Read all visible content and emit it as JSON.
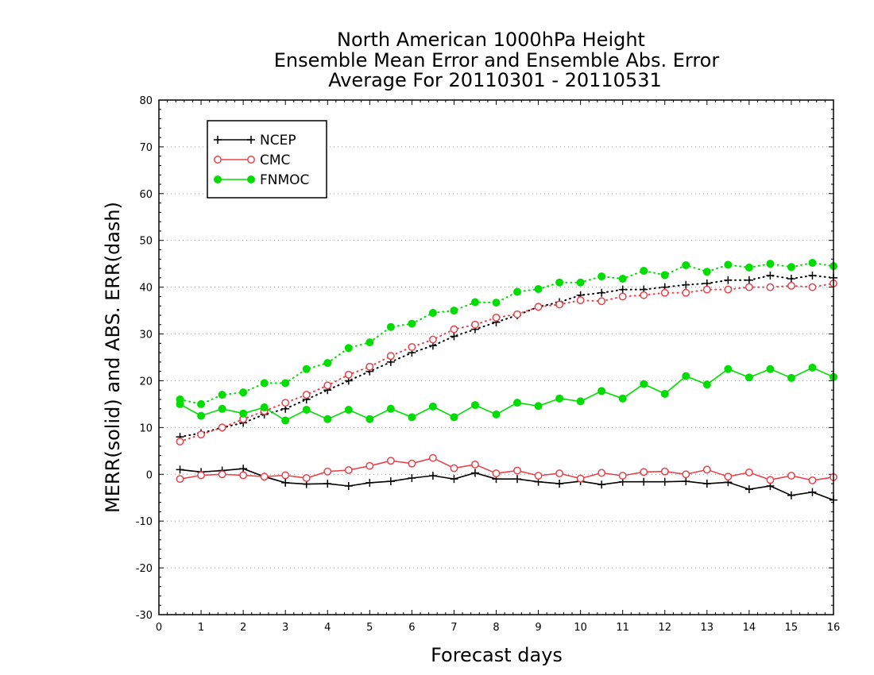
{
  "chart_data": {
    "type": "line",
    "title": [
      "North American 1000hPa Height",
      "Ensemble Mean Error and Ensemble Abs. Error",
      "Average For 20110301 - 20110531"
    ],
    "xlabel": "Forecast days",
    "ylabel": "MERR(solid) and ABS. ERR(dash)",
    "xlim": [
      0,
      16
    ],
    "ylim": [
      -30,
      80
    ],
    "xticks": [
      0,
      1,
      2,
      3,
      4,
      5,
      6,
      7,
      8,
      9,
      10,
      11,
      12,
      13,
      14,
      15,
      16
    ],
    "yticks": [
      -30,
      -20,
      -10,
      0,
      10,
      20,
      30,
      40,
      50,
      60,
      70,
      80
    ],
    "grid": "horizontal dotted",
    "legend_position": "top-left",
    "x": [
      0.5,
      1,
      1.5,
      2,
      2.5,
      3,
      3.5,
      4,
      4.5,
      5,
      5.5,
      6,
      6.5,
      7,
      7.5,
      8,
      8.5,
      9,
      9.5,
      10,
      10.5,
      11,
      11.5,
      12,
      12.5,
      13,
      13.5,
      14,
      14.5,
      15,
      15.5,
      16
    ],
    "series": [
      {
        "name": "NCEP",
        "color": "#000000",
        "marker": "plus",
        "merr": [
          1.0,
          0.5,
          0.8,
          1.2,
          -0.5,
          -1.8,
          -2.1,
          -2.0,
          -2.5,
          -1.8,
          -1.5,
          -0.8,
          -0.3,
          -1.0,
          0.3,
          -1.0,
          -1.0,
          -1.6,
          -2.0,
          -1.5,
          -2.2,
          -1.6,
          -1.6,
          -1.6,
          -1.5,
          -2.0,
          -1.7,
          -3.2,
          -2.5,
          -4.5,
          -3.8,
          -5.5
        ],
        "abs_err": [
          8.0,
          8.8,
          10.0,
          11.0,
          12.8,
          14.0,
          16.0,
          18.0,
          20.0,
          22.0,
          24.0,
          26.0,
          27.5,
          29.5,
          31.0,
          32.5,
          34.0,
          35.8,
          36.8,
          38.3,
          38.8,
          39.5,
          39.5,
          40.0,
          40.5,
          40.8,
          41.5,
          41.5,
          42.5,
          41.8,
          42.5,
          42.0
        ]
      },
      {
        "name": "CMC",
        "color": "#e8424a",
        "marker": "open-circle",
        "merr": [
          -1.0,
          -0.2,
          0.0,
          -0.2,
          -0.5,
          -0.2,
          -0.8,
          0.6,
          0.9,
          1.8,
          2.9,
          2.3,
          3.5,
          1.3,
          2.1,
          0.2,
          0.8,
          -0.3,
          0.2,
          -0.9,
          0.3,
          -0.3,
          0.5,
          0.6,
          0.0,
          1.0,
          -0.5,
          0.4,
          -1.2,
          -0.3,
          -1.3,
          -0.6
        ],
        "abs_err": [
          7.0,
          8.5,
          10.0,
          11.8,
          13.5,
          15.3,
          17.0,
          19.0,
          21.3,
          23.0,
          25.3,
          27.2,
          28.8,
          31.0,
          32.0,
          33.5,
          34.2,
          35.8,
          36.3,
          37.2,
          37.0,
          38.0,
          38.3,
          38.8,
          38.8,
          39.5,
          39.5,
          40.0,
          40.0,
          40.3,
          40.0,
          40.8
        ]
      },
      {
        "name": "FNMOC",
        "color": "#00dd00",
        "marker": "filled-circle",
        "merr": [
          15.0,
          12.5,
          14.0,
          13.0,
          14.3,
          11.5,
          13.8,
          11.8,
          13.8,
          11.8,
          14.0,
          12.2,
          14.5,
          12.2,
          14.8,
          12.8,
          15.3,
          14.6,
          16.2,
          15.6,
          17.8,
          16.2,
          19.3,
          17.2,
          21.0,
          19.2,
          22.5,
          20.7,
          22.5,
          20.6,
          22.8,
          20.8
        ],
        "abs_err": [
          16.0,
          15.0,
          17.0,
          17.5,
          19.5,
          19.5,
          22.5,
          23.8,
          27.0,
          28.2,
          31.5,
          32.2,
          34.5,
          35.0,
          36.8,
          36.7,
          39.0,
          39.6,
          41.0,
          41.0,
          42.3,
          41.8,
          43.5,
          42.6,
          44.7,
          43.3,
          44.8,
          44.2,
          45.0,
          44.3,
          45.2,
          44.5
        ]
      }
    ]
  }
}
